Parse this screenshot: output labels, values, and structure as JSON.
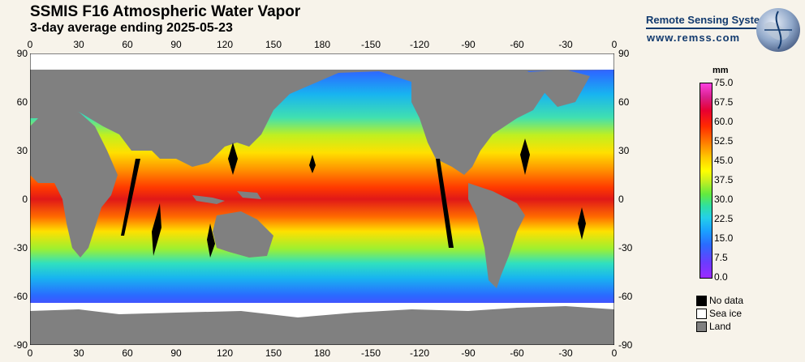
{
  "header": {
    "title": "SSMIS F16 Atmospheric Water Vapor",
    "subtitle": "3-day average ending 2025-05-23"
  },
  "brand": {
    "name": "Remote Sensing Systems",
    "url": "www.remss.com",
    "logo_icon": "globe-logo-icon"
  },
  "axes": {
    "lon_ticks": [
      "0",
      "30",
      "60",
      "90",
      "120",
      "150",
      "180",
      "-150",
      "-120",
      "-90",
      "-60",
      "-30",
      "0"
    ],
    "lat_ticks": [
      "90",
      "60",
      "30",
      "0",
      "-30",
      "-60",
      "-90"
    ]
  },
  "colorbar": {
    "unit": "mm",
    "labels": [
      "75.0",
      "67.5",
      "60.0",
      "52.5",
      "45.0",
      "37.5",
      "30.0",
      "22.5",
      "15.0",
      "7.5",
      "0.0"
    ],
    "range": [
      0,
      75
    ]
  },
  "legend": [
    {
      "label": "No data",
      "color": "#000000"
    },
    {
      "label": "Sea ice",
      "color": "#ffffff"
    },
    {
      "label": "Land",
      "color": "#808080"
    }
  ],
  "colors": {
    "ocean_wet": "#e02010",
    "ocean_dry": "#7a2cff",
    "land": "#808080",
    "ice": "#ffffff",
    "nodata": "#000000"
  }
}
